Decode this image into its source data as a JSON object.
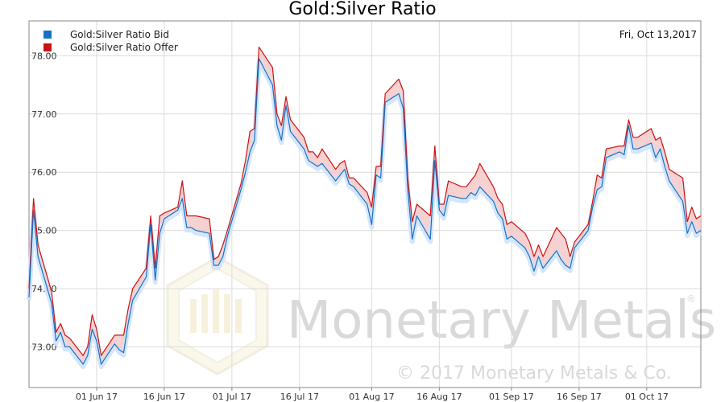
{
  "watermark": {
    "brand": "Monetary Metals",
    "registered": "®",
    "copyright": "© 2017 Monetary Metals & Co."
  },
  "chart_data": {
    "type": "line",
    "title": "Gold:Silver Ratio",
    "date_text": "Fri, Oct 13,2017",
    "xlabel": "",
    "ylabel": "",
    "ylim": [
      72.3,
      78.6
    ],
    "y_ticks": [
      "73.00",
      "74.00",
      "75.00",
      "76.00",
      "77.00",
      "78.00"
    ],
    "y_tick_values": [
      73,
      74,
      75,
      76,
      77,
      78
    ],
    "x_tick_labels": [
      "01 Jun 17",
      "16 Jun 17",
      "01 Jul 17",
      "16 Jul 17",
      "01 Aug 17",
      "16 Aug 17",
      "01 Sep 17",
      "16 Sep 17",
      "01 Oct 17"
    ],
    "x_tick_dates": [
      "2017-06-01",
      "2017-06-16",
      "2017-07-01",
      "2017-07-16",
      "2017-08-01",
      "2017-08-16",
      "2017-09-01",
      "2017-09-16",
      "2017-10-01"
    ],
    "x_range": [
      "2017-05-17",
      "2017-10-13"
    ],
    "grid": true,
    "legend_position": "top-left",
    "colors": {
      "bid": "#1a6fc4",
      "offer": "#cc1111",
      "band": "#f3c6c6",
      "glow": "#cfe3fb"
    },
    "series": [
      {
        "name": "Gold:Silver Ratio Bid",
        "color": "#1a6fc4",
        "x": [
          "2017-05-17",
          "2017-05-18",
          "2017-05-19",
          "2017-05-22",
          "2017-05-23",
          "2017-05-24",
          "2017-05-25",
          "2017-05-26",
          "2017-05-29",
          "2017-05-30",
          "2017-05-31",
          "2017-06-01",
          "2017-06-02",
          "2017-06-05",
          "2017-06-06",
          "2017-06-07",
          "2017-06-08",
          "2017-06-09",
          "2017-06-12",
          "2017-06-13",
          "2017-06-14",
          "2017-06-15",
          "2017-06-16",
          "2017-06-19",
          "2017-06-20",
          "2017-06-21",
          "2017-06-22",
          "2017-06-23",
          "2017-06-26",
          "2017-06-27",
          "2017-06-28",
          "2017-06-29",
          "2017-06-30",
          "2017-07-03",
          "2017-07-04",
          "2017-07-05",
          "2017-07-06",
          "2017-07-07",
          "2017-07-10",
          "2017-07-11",
          "2017-07-12",
          "2017-07-13",
          "2017-07-14",
          "2017-07-17",
          "2017-07-18",
          "2017-07-19",
          "2017-07-20",
          "2017-07-21",
          "2017-07-24",
          "2017-07-25",
          "2017-07-26",
          "2017-07-27",
          "2017-07-28",
          "2017-07-31",
          "2017-08-01",
          "2017-08-02",
          "2017-08-03",
          "2017-08-04",
          "2017-08-07",
          "2017-08-08",
          "2017-08-09",
          "2017-08-10",
          "2017-08-11",
          "2017-08-14",
          "2017-08-15",
          "2017-08-16",
          "2017-08-17",
          "2017-08-18",
          "2017-08-21",
          "2017-08-22",
          "2017-08-23",
          "2017-08-24",
          "2017-08-25",
          "2017-08-28",
          "2017-08-29",
          "2017-08-30",
          "2017-08-31",
          "2017-09-01",
          "2017-09-04",
          "2017-09-05",
          "2017-09-06",
          "2017-09-07",
          "2017-09-08",
          "2017-09-11",
          "2017-09-12",
          "2017-09-13",
          "2017-09-14",
          "2017-09-15",
          "2017-09-18",
          "2017-09-19",
          "2017-09-20",
          "2017-09-21",
          "2017-09-22",
          "2017-09-25",
          "2017-09-26",
          "2017-09-27",
          "2017-09-28",
          "2017-09-29",
          "2017-10-02",
          "2017-10-03",
          "2017-10-04",
          "2017-10-05",
          "2017-10-06",
          "2017-10-09",
          "2017-10-10",
          "2017-10-11",
          "2017-10-12",
          "2017-10-13"
        ],
        "values": [
          73.85,
          75.35,
          74.55,
          73.75,
          73.1,
          73.25,
          73.0,
          73.0,
          72.7,
          72.85,
          73.3,
          73.1,
          72.7,
          73.05,
          72.95,
          72.9,
          73.4,
          73.8,
          74.2,
          75.1,
          74.15,
          74.95,
          75.2,
          75.35,
          75.55,
          75.05,
          75.05,
          75.0,
          74.95,
          74.4,
          74.4,
          74.55,
          74.9,
          75.7,
          76.0,
          76.35,
          76.55,
          77.95,
          77.5,
          76.8,
          76.55,
          77.15,
          76.7,
          76.4,
          76.2,
          76.15,
          76.1,
          76.15,
          75.85,
          75.95,
          76.05,
          75.8,
          75.75,
          75.45,
          75.1,
          75.95,
          75.9,
          77.2,
          77.35,
          77.1,
          75.7,
          74.85,
          75.25,
          74.85,
          76.2,
          75.35,
          75.25,
          75.6,
          75.55,
          75.55,
          75.65,
          75.6,
          75.75,
          75.5,
          75.3,
          75.2,
          74.85,
          74.9,
          74.7,
          74.55,
          74.3,
          74.55,
          74.35,
          74.65,
          74.5,
          74.4,
          74.35,
          74.7,
          75.0,
          75.4,
          75.7,
          75.75,
          76.25,
          76.35,
          76.3,
          76.8,
          76.4,
          76.4,
          76.5,
          76.25,
          76.4,
          76.1,
          75.85,
          75.5,
          74.95,
          75.15,
          74.95,
          75.0
        ]
      },
      {
        "name": "Gold:Silver Ratio Offer",
        "color": "#cc1111",
        "values": [
          74.0,
          75.55,
          74.75,
          73.95,
          73.25,
          73.4,
          73.2,
          73.15,
          72.85,
          73.0,
          73.55,
          73.3,
          72.85,
          73.2,
          73.2,
          73.2,
          73.65,
          74.0,
          74.35,
          75.25,
          74.35,
          75.25,
          75.3,
          75.4,
          75.85,
          75.25,
          75.25,
          75.25,
          75.2,
          74.5,
          74.55,
          74.75,
          75.0,
          75.8,
          76.2,
          76.7,
          76.75,
          78.15,
          77.8,
          77.0,
          76.8,
          77.3,
          76.9,
          76.6,
          76.35,
          76.35,
          76.25,
          76.4,
          76.05,
          76.15,
          76.2,
          75.9,
          75.9,
          75.65,
          75.4,
          76.1,
          76.1,
          77.35,
          77.6,
          77.4,
          75.9,
          75.15,
          75.45,
          75.25,
          76.45,
          75.45,
          75.45,
          75.85,
          75.75,
          75.75,
          75.85,
          75.95,
          76.15,
          75.75,
          75.55,
          75.45,
          75.1,
          75.15,
          74.95,
          74.8,
          74.55,
          74.75,
          74.55,
          75.05,
          74.95,
          74.85,
          74.55,
          74.8,
          75.1,
          75.5,
          75.95,
          75.9,
          76.4,
          76.45,
          76.45,
          76.9,
          76.6,
          76.6,
          76.75,
          76.55,
          76.6,
          76.35,
          76.05,
          75.9,
          75.15,
          75.4,
          75.2,
          75.25
        ]
      }
    ]
  }
}
